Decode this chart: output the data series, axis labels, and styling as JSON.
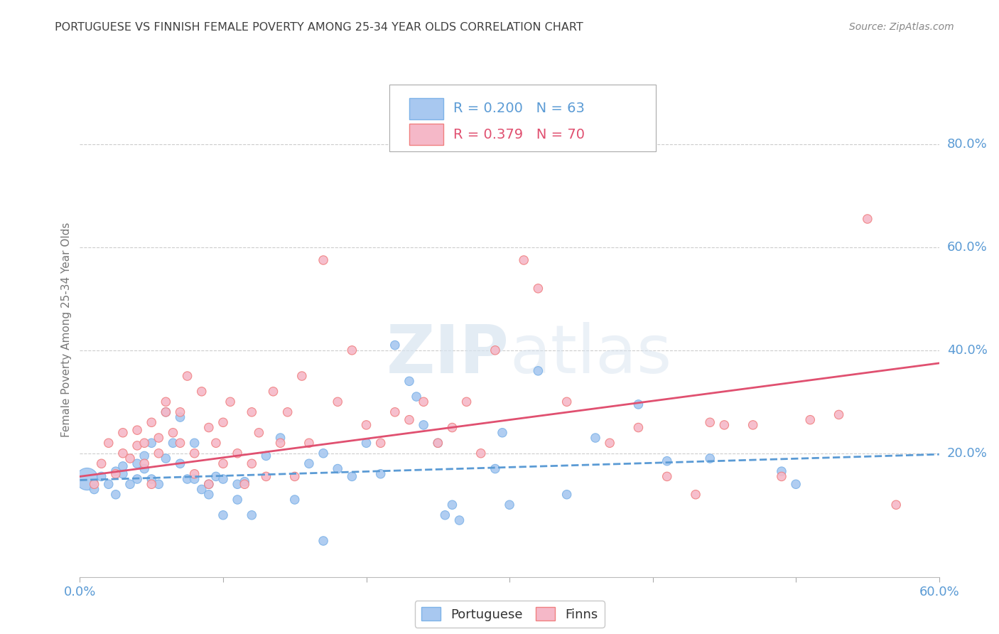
{
  "title": "PORTUGUESE VS FINNISH FEMALE POVERTY AMONG 25-34 YEAR OLDS CORRELATION CHART",
  "source": "Source: ZipAtlas.com",
  "ylabel": "Female Poverty Among 25-34 Year Olds",
  "ytick_labels": [
    "80.0%",
    "60.0%",
    "40.0%",
    "20.0%"
  ],
  "ytick_values": [
    0.8,
    0.6,
    0.4,
    0.2
  ],
  "xlim": [
    0.0,
    0.6
  ],
  "ylim": [
    -0.04,
    0.92
  ],
  "watermark_zip": "ZIP",
  "watermark_atlas": "atlas",
  "legend": {
    "portuguese": {
      "R": 0.2,
      "N": 63
    },
    "finns": {
      "R": 0.379,
      "N": 70
    }
  },
  "portuguese_color": "#A8C8F0",
  "finns_color": "#F5B8C8",
  "portuguese_edge_color": "#7EB3E8",
  "finns_edge_color": "#F08080",
  "portuguese_line_color": "#5B9BD5",
  "finns_line_color": "#E05070",
  "portuguese_scatter": [
    [
      0.005,
      0.15
    ],
    [
      0.01,
      0.13
    ],
    [
      0.015,
      0.155
    ],
    [
      0.02,
      0.14
    ],
    [
      0.025,
      0.165
    ],
    [
      0.025,
      0.12
    ],
    [
      0.03,
      0.16
    ],
    [
      0.03,
      0.175
    ],
    [
      0.035,
      0.14
    ],
    [
      0.04,
      0.15
    ],
    [
      0.04,
      0.18
    ],
    [
      0.045,
      0.17
    ],
    [
      0.045,
      0.195
    ],
    [
      0.05,
      0.15
    ],
    [
      0.05,
      0.22
    ],
    [
      0.055,
      0.14
    ],
    [
      0.06,
      0.19
    ],
    [
      0.06,
      0.28
    ],
    [
      0.065,
      0.22
    ],
    [
      0.07,
      0.27
    ],
    [
      0.07,
      0.18
    ],
    [
      0.075,
      0.15
    ],
    [
      0.08,
      0.22
    ],
    [
      0.08,
      0.15
    ],
    [
      0.085,
      0.13
    ],
    [
      0.09,
      0.14
    ],
    [
      0.09,
      0.12
    ],
    [
      0.095,
      0.155
    ],
    [
      0.1,
      0.15
    ],
    [
      0.1,
      0.08
    ],
    [
      0.11,
      0.11
    ],
    [
      0.11,
      0.14
    ],
    [
      0.115,
      0.145
    ],
    [
      0.12,
      0.08
    ],
    [
      0.13,
      0.195
    ],
    [
      0.14,
      0.23
    ],
    [
      0.15,
      0.11
    ],
    [
      0.16,
      0.18
    ],
    [
      0.17,
      0.2
    ],
    [
      0.17,
      0.03
    ],
    [
      0.18,
      0.17
    ],
    [
      0.19,
      0.155
    ],
    [
      0.2,
      0.22
    ],
    [
      0.21,
      0.16
    ],
    [
      0.22,
      0.41
    ],
    [
      0.23,
      0.34
    ],
    [
      0.235,
      0.31
    ],
    [
      0.24,
      0.255
    ],
    [
      0.25,
      0.22
    ],
    [
      0.255,
      0.08
    ],
    [
      0.26,
      0.1
    ],
    [
      0.265,
      0.07
    ],
    [
      0.29,
      0.17
    ],
    [
      0.295,
      0.24
    ],
    [
      0.3,
      0.1
    ],
    [
      0.32,
      0.36
    ],
    [
      0.34,
      0.12
    ],
    [
      0.36,
      0.23
    ],
    [
      0.39,
      0.295
    ],
    [
      0.41,
      0.185
    ],
    [
      0.44,
      0.19
    ],
    [
      0.49,
      0.165
    ],
    [
      0.5,
      0.14
    ]
  ],
  "portuguese_dot_sizes": [
    500,
    80,
    80,
    80,
    80,
    80,
    80,
    80,
    80,
    80,
    80,
    80,
    80,
    80,
    80,
    80,
    80,
    80,
    80,
    80,
    80,
    80,
    80,
    80,
    80,
    80,
    80,
    80,
    80,
    80,
    80,
    80,
    80,
    80,
    80,
    80,
    80,
    80,
    80,
    80,
    80,
    80,
    80,
    80,
    80,
    80,
    80,
    80,
    80,
    80,
    80,
    80,
    80,
    80,
    80,
    80,
    80,
    80,
    80,
    80,
    80,
    80,
    80
  ],
  "finns_scatter": [
    [
      0.01,
      0.14
    ],
    [
      0.015,
      0.18
    ],
    [
      0.02,
      0.22
    ],
    [
      0.025,
      0.16
    ],
    [
      0.03,
      0.2
    ],
    [
      0.03,
      0.24
    ],
    [
      0.035,
      0.19
    ],
    [
      0.04,
      0.215
    ],
    [
      0.04,
      0.245
    ],
    [
      0.045,
      0.18
    ],
    [
      0.045,
      0.22
    ],
    [
      0.05,
      0.26
    ],
    [
      0.05,
      0.14
    ],
    [
      0.055,
      0.2
    ],
    [
      0.055,
      0.23
    ],
    [
      0.06,
      0.28
    ],
    [
      0.06,
      0.3
    ],
    [
      0.065,
      0.24
    ],
    [
      0.07,
      0.28
    ],
    [
      0.07,
      0.22
    ],
    [
      0.075,
      0.35
    ],
    [
      0.08,
      0.2
    ],
    [
      0.08,
      0.16
    ],
    [
      0.085,
      0.32
    ],
    [
      0.09,
      0.25
    ],
    [
      0.09,
      0.14
    ],
    [
      0.095,
      0.22
    ],
    [
      0.1,
      0.18
    ],
    [
      0.1,
      0.26
    ],
    [
      0.105,
      0.3
    ],
    [
      0.11,
      0.2
    ],
    [
      0.115,
      0.14
    ],
    [
      0.12,
      0.18
    ],
    [
      0.12,
      0.28
    ],
    [
      0.125,
      0.24
    ],
    [
      0.13,
      0.155
    ],
    [
      0.135,
      0.32
    ],
    [
      0.14,
      0.22
    ],
    [
      0.145,
      0.28
    ],
    [
      0.15,
      0.155
    ],
    [
      0.155,
      0.35
    ],
    [
      0.16,
      0.22
    ],
    [
      0.17,
      0.575
    ],
    [
      0.18,
      0.3
    ],
    [
      0.19,
      0.4
    ],
    [
      0.2,
      0.255
    ],
    [
      0.21,
      0.22
    ],
    [
      0.22,
      0.28
    ],
    [
      0.23,
      0.265
    ],
    [
      0.24,
      0.3
    ],
    [
      0.25,
      0.22
    ],
    [
      0.26,
      0.25
    ],
    [
      0.27,
      0.3
    ],
    [
      0.28,
      0.2
    ],
    [
      0.29,
      0.4
    ],
    [
      0.31,
      0.575
    ],
    [
      0.32,
      0.52
    ],
    [
      0.34,
      0.3
    ],
    [
      0.37,
      0.22
    ],
    [
      0.39,
      0.25
    ],
    [
      0.41,
      0.155
    ],
    [
      0.43,
      0.12
    ],
    [
      0.44,
      0.26
    ],
    [
      0.45,
      0.255
    ],
    [
      0.47,
      0.255
    ],
    [
      0.49,
      0.155
    ],
    [
      0.51,
      0.265
    ],
    [
      0.53,
      0.275
    ],
    [
      0.55,
      0.655
    ],
    [
      0.57,
      0.1
    ]
  ],
  "finns_dot_sizes": [
    80,
    80,
    80,
    80,
    80,
    80,
    80,
    80,
    80,
    80,
    80,
    80,
    80,
    80,
    80,
    80,
    80,
    80,
    80,
    80,
    80,
    80,
    80,
    80,
    80,
    80,
    80,
    80,
    80,
    80,
    80,
    80,
    80,
    80,
    80,
    80,
    80,
    80,
    80,
    80,
    80,
    80,
    80,
    80,
    80,
    80,
    80,
    80,
    80,
    80,
    80,
    80,
    80,
    80,
    80,
    80,
    80,
    80,
    80,
    80,
    80,
    80,
    80,
    80,
    80,
    80,
    80,
    80,
    80,
    80
  ],
  "portuguese_line": {
    "x0": 0.0,
    "y0": 0.148,
    "x1": 0.6,
    "y1": 0.198
  },
  "finns_line": {
    "x0": 0.0,
    "y0": 0.155,
    "x1": 0.6,
    "y1": 0.375
  },
  "background_color": "#FFFFFF",
  "grid_color": "#CCCCCC",
  "axis_label_color": "#5B9BD5",
  "title_color": "#404040",
  "source_color": "#888888"
}
